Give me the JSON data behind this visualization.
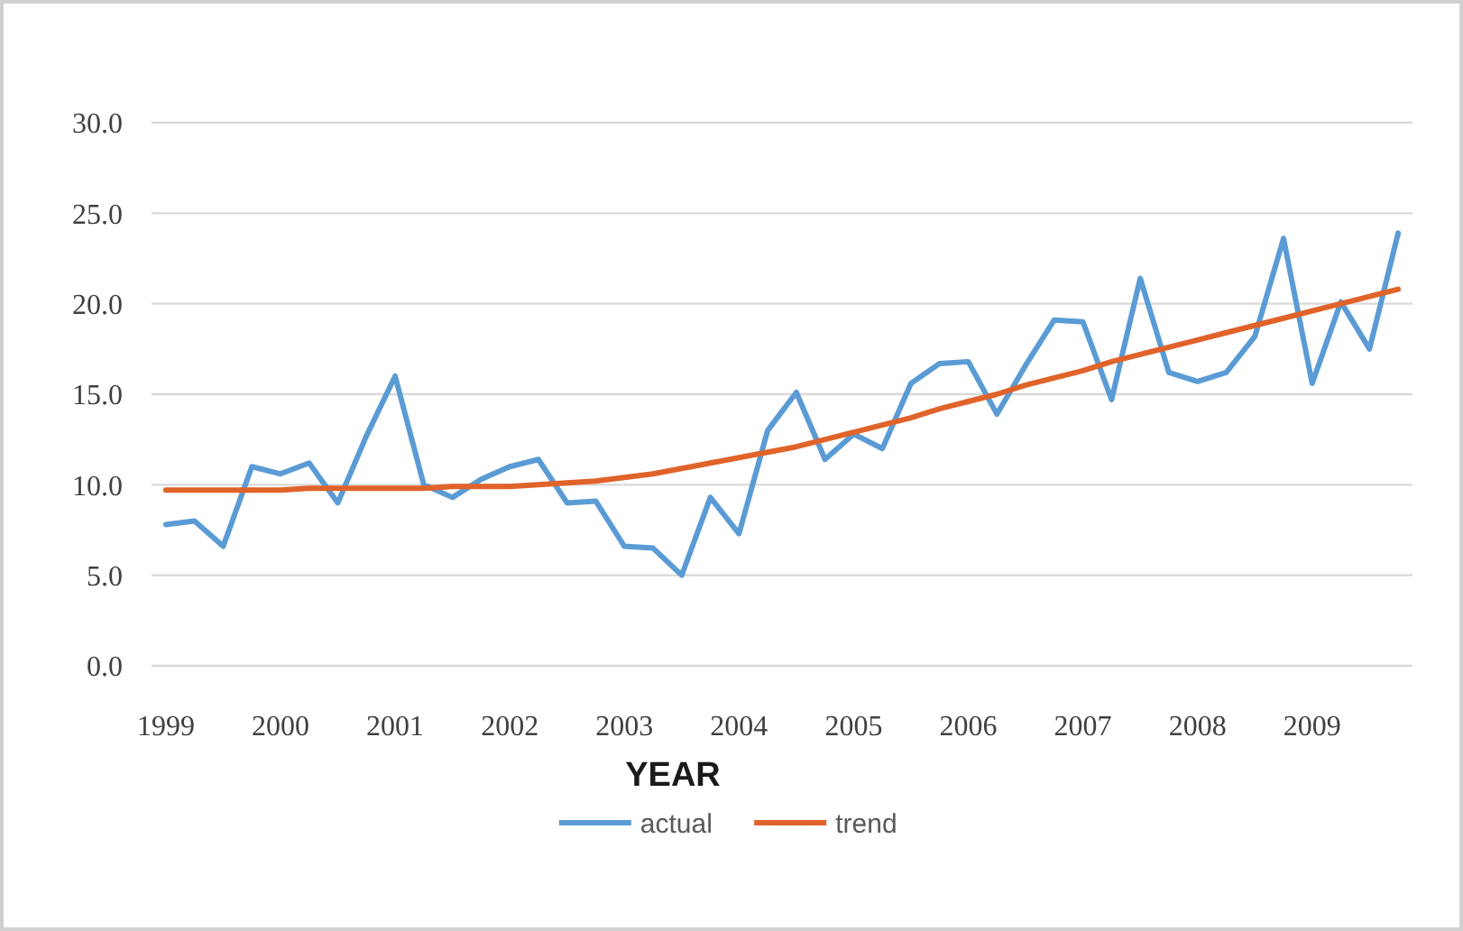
{
  "chart_data": {
    "type": "line",
    "xlabel": "YEAR",
    "categories": [
      "1999",
      null,
      null,
      null,
      "2000",
      null,
      null,
      null,
      "2001",
      null,
      null,
      null,
      "2002",
      null,
      null,
      null,
      "2003",
      null,
      null,
      null,
      "2004",
      null,
      null,
      null,
      "2005",
      null,
      null,
      null,
      "2006",
      null,
      null,
      null,
      "2007",
      null,
      null,
      null,
      "2008",
      null,
      null,
      null,
      "2009",
      null,
      null,
      null
    ],
    "series": [
      {
        "name": "actual",
        "color": "#5b9bd5",
        "values": [
          7.8,
          8.0,
          6.6,
          11.0,
          10.6,
          11.2,
          9.0,
          12.7,
          16.0,
          10.0,
          9.3,
          10.3,
          11.0,
          11.4,
          9.0,
          9.1,
          6.6,
          6.5,
          5.0,
          9.3,
          7.3,
          13.0,
          15.1,
          11.4,
          12.8,
          12.0,
          15.6,
          16.7,
          16.8,
          13.9,
          16.6,
          19.1,
          19.0,
          14.7,
          21.4,
          16.2,
          15.7,
          16.2,
          18.2,
          23.6,
          15.6,
          20.1,
          17.5,
          23.9
        ]
      },
      {
        "name": "trend",
        "color": "#e0632a",
        "values": [
          9.7,
          9.7,
          9.7,
          9.7,
          9.7,
          9.8,
          9.8,
          9.8,
          9.8,
          9.8,
          9.9,
          9.9,
          9.9,
          10.0,
          10.1,
          10.2,
          10.4,
          10.6,
          10.9,
          11.2,
          11.5,
          11.8,
          12.1,
          12.5,
          12.9,
          13.3,
          13.7,
          14.2,
          14.6,
          15.0,
          15.5,
          15.9,
          16.3,
          16.8,
          17.2,
          17.6,
          18.0,
          18.4,
          18.8,
          19.2,
          19.6,
          20.0,
          20.4,
          20.8
        ]
      }
    ],
    "ylim": [
      0,
      30
    ],
    "yticks": [
      {
        "value": 0,
        "label": "0.0"
      },
      {
        "value": 5,
        "label": "5.0"
      },
      {
        "value": 10,
        "label": "10.0"
      },
      {
        "value": 15,
        "label": "15.0"
      },
      {
        "value": 20,
        "label": "20.0"
      },
      {
        "value": 25,
        "label": "25.0"
      },
      {
        "value": 30,
        "label": "30.0"
      }
    ],
    "grid": "y",
    "legend": "bottom"
  }
}
